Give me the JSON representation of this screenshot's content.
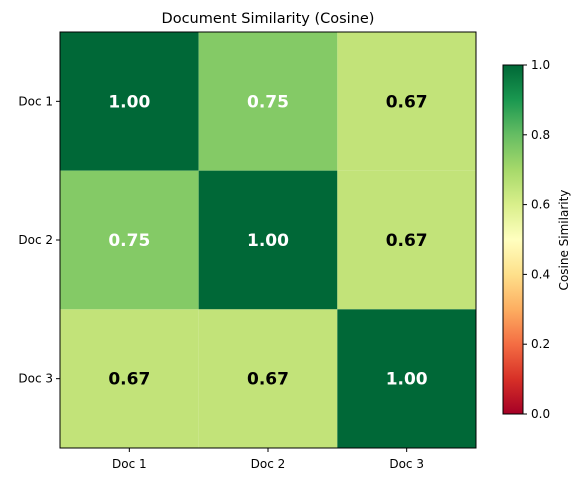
{
  "chart_data": {
    "type": "heatmap",
    "title": "Document Similarity (Cosine)",
    "x_categories": [
      "Doc 1",
      "Doc 2",
      "Doc 3"
    ],
    "y_categories": [
      "Doc 1",
      "Doc 2",
      "Doc 3"
    ],
    "values": [
      [
        1.0,
        0.75,
        0.67
      ],
      [
        0.75,
        1.0,
        0.67
      ],
      [
        0.67,
        0.67,
        1.0
      ]
    ],
    "value_labels": [
      [
        "1.00",
        "0.75",
        "0.67"
      ],
      [
        "0.75",
        "1.00",
        "0.67"
      ],
      [
        "0.67",
        "0.67",
        "1.00"
      ]
    ],
    "colormap": "RdYlGn",
    "colorbar": {
      "label": "Cosine Similarity",
      "range": [
        0.0,
        1.0
      ],
      "ticks": [
        "0.0",
        "0.2",
        "0.4",
        "0.6",
        "0.8",
        "1.0"
      ]
    },
    "cell_colors": {
      "1.00": "#006837",
      "0.75": "#84ca66",
      "0.67": "#c2e379"
    },
    "label_colors": {
      "light": "#ffffff",
      "dark": "#000000"
    }
  }
}
